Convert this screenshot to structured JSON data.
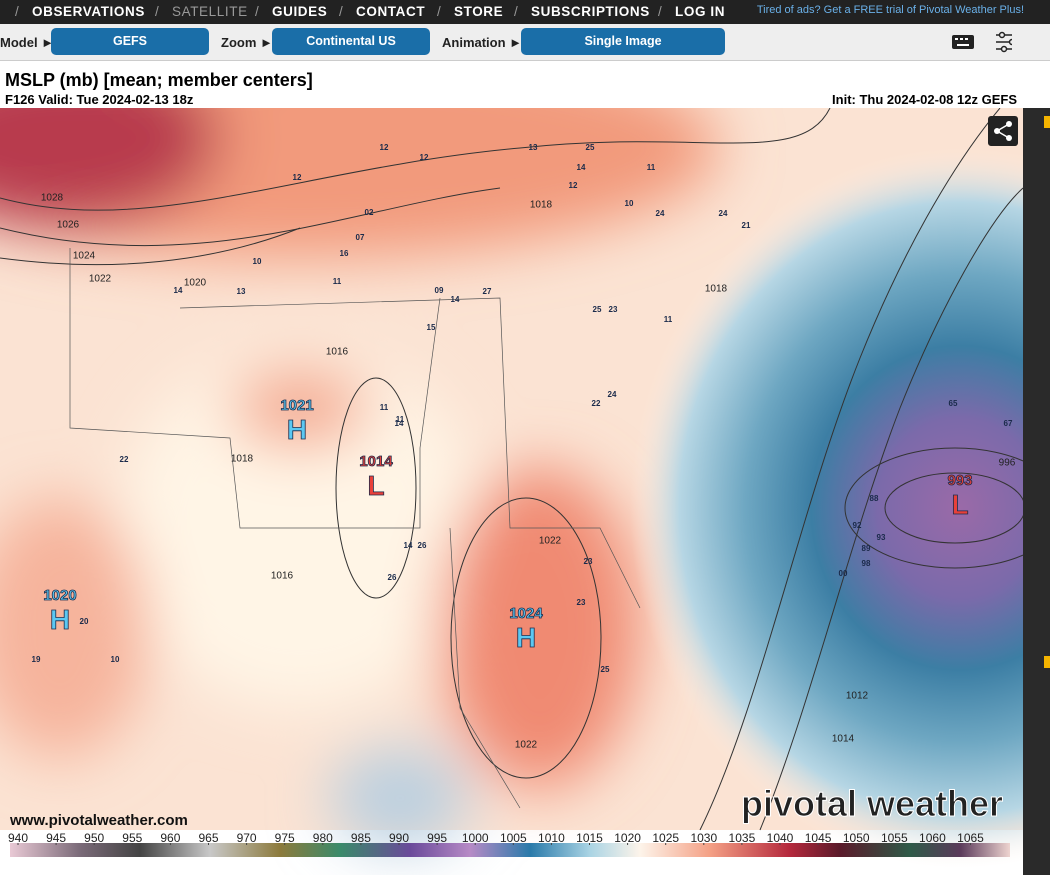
{
  "nav": {
    "separator": "/",
    "items": [
      "OBSERVATIONS",
      "SATELLITE",
      "GUIDES",
      "CONTACT",
      "STORE",
      "SUBSCRIPTIONS",
      "LOG IN"
    ],
    "promo": "Tired of ads? Get a FREE trial of Pivotal Weather Plus!"
  },
  "controls": [
    {
      "label": "Model ►",
      "value": "GEFS"
    },
    {
      "label": "Zoom ►",
      "value": "Continental US"
    },
    {
      "label": "Animation ►",
      "value": "Single Image"
    }
  ],
  "header": {
    "title": "MSLP (mb) [mean; member centers]",
    "valid": "F126 Valid: Tue 2024-02-13 18z",
    "init": "Init: Thu 2024-02-08 12z GEFS"
  },
  "map": {
    "centers": [
      {
        "value": "1020",
        "letter": "H",
        "kind": "high"
      },
      {
        "value": "1021",
        "letter": "H",
        "kind": "high"
      },
      {
        "value": "1014",
        "letter": "L",
        "kind": "low"
      },
      {
        "value": "1024",
        "letter": "H",
        "kind": "high"
      },
      {
        "value": "993",
        "letter": "L",
        "kind": "low"
      }
    ],
    "isobar_labels": [
      "1028",
      "1026",
      "1024",
      "1022",
      "1020",
      "1018",
      "1016",
      "1016",
      "1018",
      "1018",
      "1022",
      "1022",
      "1012",
      "1014",
      "996"
    ],
    "member_labels": [
      "12",
      "12",
      "12",
      "13",
      "25",
      "14",
      "12",
      "11",
      "10",
      "24",
      "24",
      "21",
      "02",
      "07",
      "16",
      "10",
      "11",
      "13",
      "14",
      "09",
      "14",
      "27",
      "25",
      "23",
      "11",
      "15",
      "24",
      "22",
      "11",
      "22",
      "20",
      "19",
      "10",
      "11",
      "14",
      "26",
      "14",
      "26",
      "23",
      "23",
      "25",
      "88",
      "92",
      "93",
      "89",
      "98",
      "00",
      "65",
      "67"
    ],
    "watermark": "www.pivotalweather.com",
    "logo": "pivotal weather"
  },
  "colorbar": {
    "ticks": [
      940,
      945,
      950,
      955,
      960,
      965,
      970,
      975,
      980,
      985,
      990,
      995,
      1000,
      1005,
      1010,
      1015,
      1020,
      1025,
      1030,
      1035,
      1040,
      1045,
      1050,
      1055,
      1060,
      1065
    ]
  }
}
